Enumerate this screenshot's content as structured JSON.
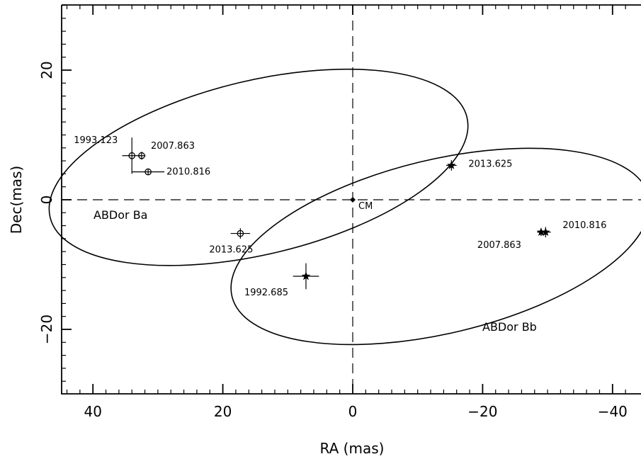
{
  "chart_data": {
    "type": "scatter",
    "xlabel": "RA (mas)",
    "ylabel": "Dec(mas)",
    "xlim": [
      45,
      -43
    ],
    "ylim": [
      -30,
      30
    ],
    "x_ticks": [
      40,
      20,
      0,
      -20,
      -40
    ],
    "x_tick_labels": [
      "40",
      "20",
      "0",
      "−20",
      "−40"
    ],
    "y_ticks": [
      20,
      0,
      -20
    ],
    "y_tick_labels": [
      "20",
      "0",
      "−20"
    ],
    "grid": false,
    "reference_lines": {
      "x": 0,
      "y": 0,
      "style": "dashed"
    },
    "center_of_mass": {
      "label": "CM",
      "x": 0,
      "y": 0
    },
    "series": [
      {
        "name": "ABDor Ba",
        "marker": "open-circle",
        "orbit_ellipse": {
          "center": [
            14.5,
            5.0
          ],
          "semi_major": 33.0,
          "semi_minor": 13.4,
          "tilt_deg": -13.5
        },
        "points": [
          {
            "epoch": "1993.123",
            "x": 34.0,
            "y": 6.8,
            "xerr": 1.5,
            "yerr": 2.8
          },
          {
            "epoch": "2007.863",
            "x": 32.5,
            "y": 6.8,
            "xerr": 0.6,
            "yerr": 0.6
          },
          {
            "epoch": "2010.816",
            "x": 31.5,
            "y": 4.3,
            "xerr": 2.5,
            "yerr": 0.5
          },
          {
            "epoch": "2013.625",
            "x": 17.3,
            "y": -5.2,
            "xerr": 1.5,
            "yerr": 0.8
          }
        ]
      },
      {
        "name": "ABDor Bb",
        "marker": "filled-star",
        "orbit_ellipse": {
          "center": [
            -13.5,
            -7.2
          ],
          "semi_major": 33.0,
          "semi_minor": 13.4,
          "tilt_deg": -13.5
        },
        "points": [
          {
            "epoch": "1992.685",
            "x": 7.2,
            "y": -11.8,
            "xerr": 2.0,
            "yerr": 2.0
          },
          {
            "epoch": "2013.625",
            "x": -15.2,
            "y": 5.3,
            "xerr": 0.8,
            "yerr": 0.8
          },
          {
            "epoch": "2007.863",
            "x": -29.0,
            "y": -5.0,
            "xerr": 0.6,
            "yerr": 0.6
          },
          {
            "epoch": "2010.816",
            "x": -29.7,
            "y": -5.0,
            "xerr": 0.8,
            "yerr": 0.8
          }
        ]
      }
    ]
  }
}
